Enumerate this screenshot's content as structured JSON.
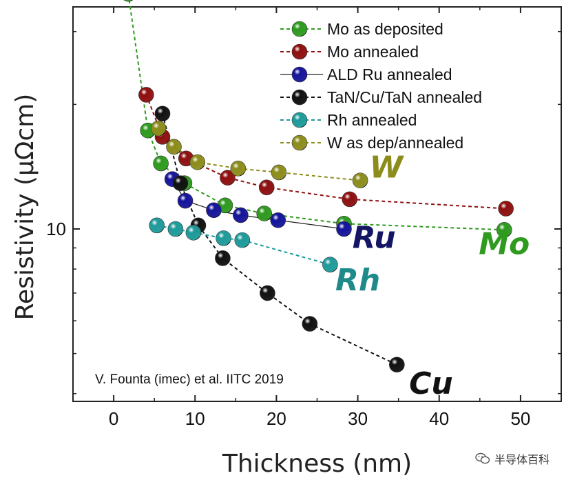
{
  "chart_data": {
    "type": "scatter",
    "xlabel": "Thickness (nm)",
    "ylabel": "Resistivity (μΩcm)",
    "xlim": [
      -5,
      55
    ],
    "x_ticks": [
      0,
      10,
      20,
      30,
      40,
      50
    ],
    "y_scale": "log",
    "y_ticks": [
      10
    ],
    "y_ticks_labeled": [
      10
    ],
    "grid": false,
    "legend_position": "top-right",
    "series": [
      {
        "name": "Mo as deposited",
        "color": "#2e9a1e",
        "line_color": "#2e9a1e",
        "line_style": "dashed",
        "x": [
          1.8,
          4.2,
          5.8,
          8.7,
          13.7,
          18.5,
          28.3,
          48.0
        ],
        "y": [
          37.0,
          17.3,
          14.4,
          12.9,
          11.4,
          10.9,
          10.3,
          9.95
        ]
      },
      {
        "name": "Mo annealed",
        "color": "#8e1010",
        "line_color": "#8e1010",
        "line_style": "dashed",
        "x": [
          4.0,
          6.0,
          8.9,
          14.0,
          18.8,
          29.0,
          48.2
        ],
        "y": [
          21.1,
          16.7,
          14.8,
          13.3,
          12.6,
          11.8,
          11.2
        ]
      },
      {
        "name": "ALD Ru annealed",
        "color": "#15159a",
        "line_color": "#222222",
        "line_style": "solid",
        "x": [
          7.2,
          8.8,
          12.3,
          15.6,
          20.2,
          28.3
        ],
        "y": [
          13.2,
          11.7,
          11.1,
          10.8,
          10.5,
          10.0
        ]
      },
      {
        "name": "TaN/Cu/TaN annealed",
        "color": "#111111",
        "line_color": "#111111",
        "line_style": "dashed",
        "x": [
          6.0,
          8.2,
          10.4,
          13.4,
          18.9,
          24.1,
          34.8
        ],
        "y": [
          19.0,
          12.9,
          10.2,
          8.5,
          7.0,
          5.9,
          4.7
        ]
      },
      {
        "name": "Rh annealed",
        "color": "#1f9a9a",
        "line_color": "#1f9a9a",
        "line_style": "dashed",
        "x": [
          5.3,
          7.6,
          9.8,
          13.5,
          15.8,
          26.6
        ],
        "y": [
          10.2,
          10.0,
          9.8,
          9.5,
          9.4,
          8.2
        ]
      },
      {
        "name": "W as dep/annealed",
        "color": "#8c8c1c",
        "line_color": "#8c8c1c",
        "line_style": "dashed",
        "x": [
          5.5,
          7.4,
          10.3,
          15.3,
          20.3,
          30.3
        ],
        "y": [
          17.5,
          15.8,
          14.5,
          14.0,
          13.7,
          13.1
        ]
      }
    ],
    "annotations": [
      {
        "text": "W",
        "x": 33.5,
        "y": 13.3,
        "color": "#8c8c1c"
      },
      {
        "text": "Ru",
        "x": 32.0,
        "y": 9.0,
        "color": "#151565"
      },
      {
        "text": "Mo",
        "x": 48.0,
        "y": 8.7,
        "color": "#2e9a1e"
      },
      {
        "text": "Rh",
        "x": 30.0,
        "y": 7.1,
        "color": "#1f8a8a"
      },
      {
        "text": "Cu",
        "x": 39.0,
        "y": 4.0,
        "color": "#111111"
      }
    ],
    "citation": "V. Founta (imec) et al. IITC 2019"
  },
  "watermark": {
    "text": "半导体百科",
    "icon": "wechat-icon"
  }
}
